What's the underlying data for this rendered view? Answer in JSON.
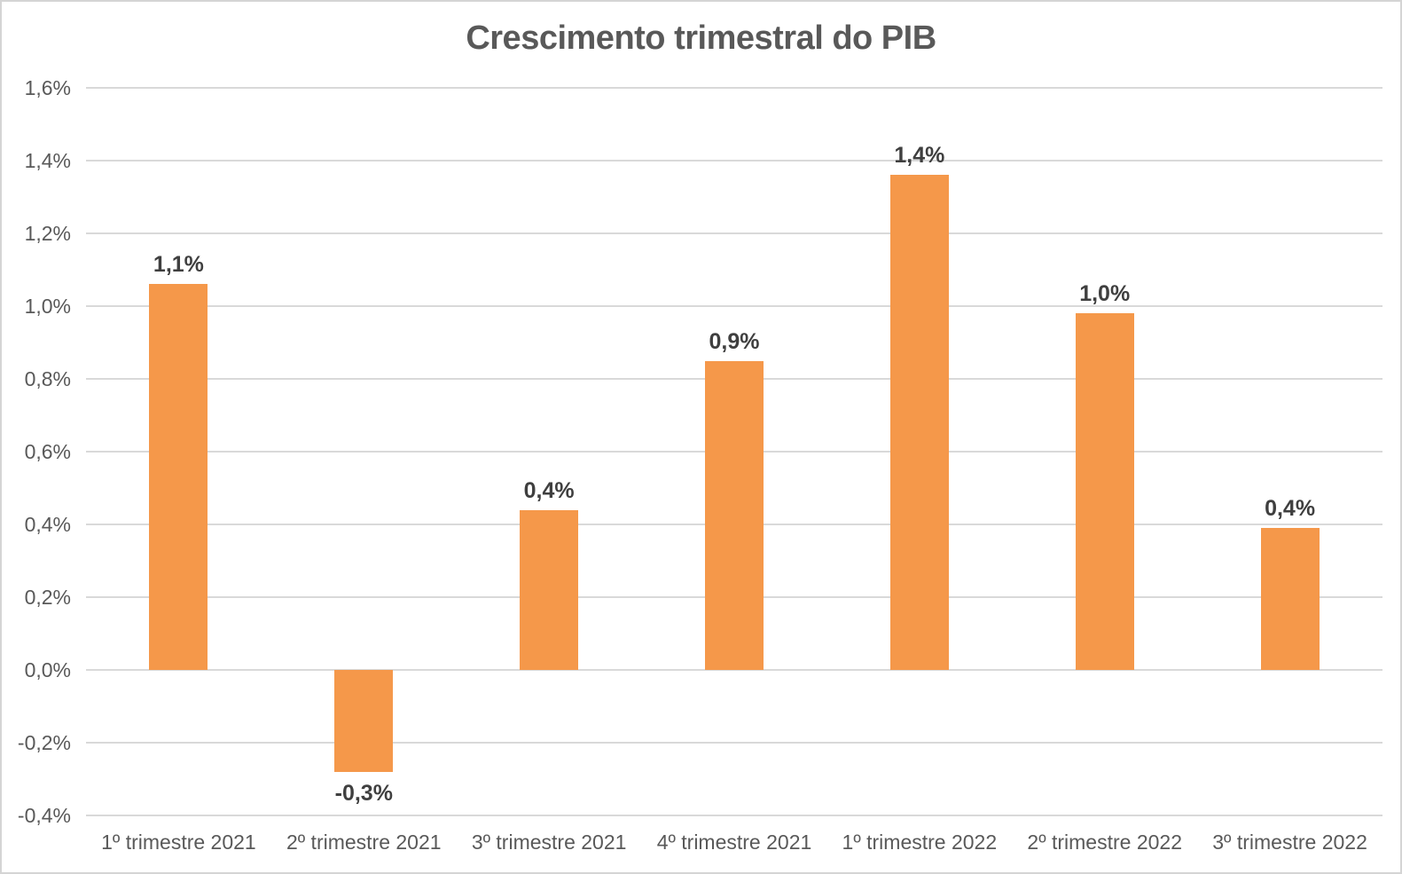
{
  "chart_data": {
    "type": "bar",
    "title": "Crescimento trimestral do PIB",
    "categories": [
      "1º trimestre 2021",
      "2º trimestre 2021",
      "3º trimestre 2021",
      "4º trimestre 2021",
      "1º trimestre 2022",
      "2º trimestre 2022",
      "3º trimestre 2022"
    ],
    "values": [
      1.06,
      -0.28,
      0.44,
      0.85,
      1.36,
      0.98,
      0.39
    ],
    "data_labels": [
      "1,1%",
      "-0,3%",
      "0,4%",
      "0,9%",
      "1,4%",
      "1,0%",
      "0,4%"
    ],
    "y_tick_values": [
      1.6,
      1.4,
      1.2,
      1.0,
      0.8,
      0.6,
      0.4,
      0.2,
      0.0,
      -0.2,
      -0.4
    ],
    "y_tick_labels": [
      "1,6%",
      "1,4%",
      "1,2%",
      "1,0%",
      "0,8%",
      "0,6%",
      "0,4%",
      "0,2%",
      "0,0%",
      "-0,2%",
      "-0,4%"
    ],
    "ylim": [
      -0.4,
      1.6
    ],
    "y_step": 0.2,
    "xlabel": "",
    "ylabel": "",
    "grid": true,
    "legend": "none",
    "colors": {
      "bar": "#f5984a",
      "grid": "#d9d9d9",
      "title": "#595959",
      "tick_label": "#595959",
      "data_label": "#3f3f3f",
      "background": "#ffffff",
      "frame_border": "#d4d4d4"
    }
  }
}
